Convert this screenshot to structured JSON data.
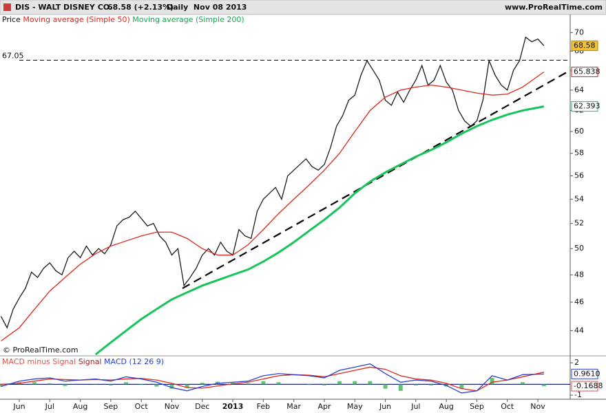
{
  "header": {
    "title": "DIS - WALT DISNEY CO.",
    "quote": "68.58 (+2.13%)",
    "period": "Daily  Nov 08 2013",
    "source": "www.ProRealTime.com"
  },
  "watermark": "© ProRealTime.com",
  "chart_data": [
    {
      "type": "line",
      "log_scale": true,
      "grid": false,
      "xlim": [
        0.368,
        19.06
      ],
      "ylim": [
        42.4,
        70.7
      ],
      "yticks": [
        44,
        46,
        48,
        50,
        52,
        54,
        56,
        58,
        60,
        62,
        64,
        66,
        68,
        70
      ],
      "hline": 67.05,
      "trendline": {
        "x": [
          6.35,
          19.06
        ],
        "values": [
          47.0,
          66.0
        ]
      },
      "series": [
        {
          "name": "Price",
          "color": "#1a1a1a",
          "label_last": true,
          "x": [
            0.4,
            0.6,
            0.8,
            1.0,
            1.2,
            1.4,
            1.6,
            1.8,
            2.0,
            2.2,
            2.4,
            2.6,
            2.8,
            3.0,
            3.2,
            3.4,
            3.6,
            3.8,
            4.0,
            4.2,
            4.4,
            4.6,
            4.8,
            5.0,
            5.2,
            5.4,
            5.6,
            5.8,
            6.0,
            6.2,
            6.4,
            6.6,
            6.8,
            7.0,
            7.2,
            7.4,
            7.6,
            7.8,
            8.0,
            8.2,
            8.4,
            8.6,
            8.8,
            9.0,
            9.2,
            9.4,
            9.6,
            9.8,
            10.0,
            10.2,
            10.4,
            10.6,
            10.8,
            11.0,
            11.2,
            11.4,
            11.6,
            11.8,
            12.0,
            12.2,
            12.4,
            12.6,
            12.8,
            13.0,
            13.2,
            13.4,
            13.6,
            13.8,
            14.0,
            14.2,
            14.4,
            14.6,
            14.8,
            15.0,
            15.2,
            15.4,
            15.6,
            15.8,
            16.0,
            16.2,
            16.4,
            16.6,
            16.8,
            17.0,
            17.2,
            17.4,
            17.6,
            17.8,
            18.0,
            18.2
          ],
          "values": [
            45.0,
            44.2,
            45.5,
            46.3,
            47.0,
            48.2,
            47.8,
            48.5,
            48.9,
            48.3,
            48.0,
            49.3,
            49.8,
            49.3,
            50.2,
            49.5,
            50.0,
            49.6,
            50.3,
            51.8,
            52.3,
            52.5,
            53.0,
            52.4,
            51.8,
            52.0,
            51.0,
            50.5,
            49.5,
            50.0,
            47.2,
            47.8,
            48.5,
            49.5,
            50.0,
            49.5,
            50.5,
            49.8,
            49.5,
            51.5,
            51.0,
            50.8,
            53.0,
            54.0,
            54.5,
            55.0,
            54.0,
            56.0,
            56.5,
            57.0,
            57.5,
            56.8,
            56.5,
            57.0,
            58.5,
            60.5,
            61.5,
            63.0,
            63.5,
            65.5,
            67.0,
            66.0,
            65.0,
            63.0,
            62.5,
            63.8,
            62.8,
            64.0,
            65.0,
            66.5,
            64.5,
            65.0,
            66.5,
            64.8,
            64.0,
            62.0,
            61.0,
            60.5,
            61.0,
            63.0,
            67.0,
            65.5,
            64.5,
            64.0,
            66.0,
            67.0,
            69.5,
            69.0,
            69.3,
            68.58
          ]
        },
        {
          "name": "Moving average (Simple 50)",
          "color": "#e0261b",
          "label_last": true,
          "x": [
            0.4,
            1,
            1.5,
            2,
            2.5,
            3,
            3.5,
            4,
            4.5,
            5,
            5.5,
            6,
            6.5,
            7,
            7.5,
            8,
            8.5,
            9,
            9.5,
            10,
            10.5,
            11,
            11.5,
            12,
            12.5,
            13,
            13.5,
            14,
            14.5,
            15,
            15.5,
            16,
            16.5,
            17,
            17.5,
            18.2
          ],
          "values": [
            43.3,
            44.2,
            45.5,
            46.8,
            47.8,
            48.8,
            49.6,
            50.2,
            50.6,
            51.0,
            51.3,
            51.3,
            50.8,
            50.0,
            49.5,
            49.5,
            50.3,
            51.5,
            52.8,
            54.0,
            55.2,
            56.5,
            58.0,
            60.0,
            62.0,
            63.3,
            64.0,
            64.3,
            64.5,
            64.3,
            64.0,
            63.7,
            63.5,
            63.6,
            64.3,
            65.838
          ]
        },
        {
          "name": "Moving average (Simple 200)",
          "color": "#16c45a",
          "label_last": true,
          "x": [
            3.5,
            4,
            4.5,
            5,
            5.5,
            6,
            6.5,
            7,
            7.5,
            8,
            8.5,
            9,
            9.5,
            10,
            10.5,
            11,
            11.5,
            12,
            12.5,
            13,
            13.5,
            14,
            14.5,
            15,
            15.5,
            16,
            16.5,
            17,
            17.5,
            18.2
          ],
          "values": [
            42.4,
            43.2,
            44.0,
            44.8,
            45.5,
            46.2,
            46.7,
            47.2,
            47.6,
            48.0,
            48.4,
            49.0,
            49.7,
            50.5,
            51.4,
            52.3,
            53.3,
            54.5,
            55.5,
            56.3,
            57.0,
            57.7,
            58.3,
            59.0,
            59.8,
            60.5,
            61.1,
            61.6,
            62.0,
            62.393
          ]
        }
      ]
    },
    {
      "type": "line",
      "log_scale": false,
      "grid": false,
      "xlim": [
        0.368,
        19.06
      ],
      "ylim": [
        -1.25,
        2.45
      ],
      "yticks": [
        -1,
        2
      ],
      "xticks": [
        {
          "value": 1,
          "label": "Jun"
        },
        {
          "value": 2,
          "label": "Jul"
        },
        {
          "value": 3,
          "label": "Aug"
        },
        {
          "value": 4,
          "label": "Sep"
        },
        {
          "value": 5,
          "label": "Oct"
        },
        {
          "value": 6,
          "label": "Nov"
        },
        {
          "value": 7,
          "label": "Dec"
        },
        {
          "value": 8,
          "label": "2013"
        },
        {
          "value": 9,
          "label": "Feb"
        },
        {
          "value": 10,
          "label": "Mar"
        },
        {
          "value": 11,
          "label": "Apr"
        },
        {
          "value": 12,
          "label": "May"
        },
        {
          "value": 13,
          "label": "Jun"
        },
        {
          "value": 14,
          "label": "Jul"
        },
        {
          "value": 15,
          "label": "Aug"
        },
        {
          "value": 16,
          "label": "Sep"
        },
        {
          "value": 17,
          "label": "Oct"
        },
        {
          "value": 18,
          "label": "Nov"
        }
      ],
      "series": [
        {
          "name": "MACD minus Signal",
          "color": "#d9534f",
          "bar_color": "#3cb44b",
          "type": "bar",
          "label_last": true,
          "x": [
            0.4,
            1,
            1.5,
            2,
            2.5,
            3,
            3.5,
            4,
            4.5,
            5,
            5.5,
            6,
            6.5,
            7,
            7.5,
            8,
            8.5,
            9,
            9.5,
            10,
            10.5,
            11,
            11.5,
            12,
            12.5,
            13,
            13.5,
            14,
            14.5,
            15,
            15.5,
            16,
            16.5,
            17,
            17.5,
            18.2
          ],
          "values": [
            -0.2,
            0.2,
            0.2,
            0.1,
            -0.15,
            0,
            0.05,
            -0.1,
            0.2,
            -0.05,
            -0.2,
            -0.4,
            -0.3,
            0.15,
            0.25,
            0.15,
            0.1,
            0.3,
            0.2,
            0,
            -0.05,
            -0.1,
            0.3,
            0.3,
            0.3,
            -0.4,
            -0.6,
            -0.1,
            -0.1,
            -0.2,
            -0.4,
            0,
            0.6,
            0,
            0.2,
            -0.1688
          ]
        },
        {
          "name": "Signal",
          "color": "#e0261b",
          "type": "line",
          "label_last": false,
          "x": [
            0.4,
            1,
            1.5,
            2,
            2.5,
            3,
            3.5,
            4,
            4.5,
            5,
            5.5,
            6,
            6.5,
            7,
            7.5,
            8,
            8.5,
            9,
            9.5,
            10,
            10.5,
            11,
            11.5,
            12,
            12.5,
            13,
            13.5,
            14,
            14.5,
            15,
            15.5,
            16,
            16.5,
            17,
            17.5,
            18.2
          ],
          "values": [
            0.0,
            0.1,
            0.3,
            0.5,
            0.45,
            0.4,
            0.45,
            0.4,
            0.5,
            0.55,
            0.4,
            0.1,
            -0.3,
            -0.35,
            -0.15,
            0.05,
            0.2,
            0.5,
            0.8,
            0.9,
            0.85,
            0.7,
            1.0,
            1.3,
            1.6,
            1.4,
            0.8,
            0.5,
            0.4,
            0.1,
            -0.4,
            -0.6,
            0.2,
            0.4,
            0.7,
            1.13
          ]
        },
        {
          "name": "MACD (12 26 9)",
          "color": "#2a3fd0",
          "type": "line",
          "label_last": true,
          "x": [
            0.4,
            1,
            1.5,
            2,
            2.5,
            3,
            3.5,
            4,
            4.5,
            5,
            5.5,
            6,
            6.5,
            7,
            7.5,
            8,
            8.5,
            9,
            9.5,
            10,
            10.5,
            11,
            11.5,
            12,
            12.5,
            13,
            13.5,
            14,
            14.5,
            15,
            15.5,
            16,
            16.5,
            17,
            17.5,
            18.2
          ],
          "values": [
            -0.2,
            0.3,
            0.5,
            0.6,
            0.3,
            0.4,
            0.5,
            0.3,
            0.7,
            0.5,
            0.2,
            -0.3,
            -0.6,
            -0.2,
            0.1,
            0.2,
            0.3,
            0.8,
            1.0,
            0.9,
            0.8,
            0.6,
            1.3,
            1.6,
            1.9,
            1.0,
            0.2,
            0.4,
            0.3,
            -0.1,
            -0.8,
            -0.6,
            0.8,
            0.4,
            0.9,
            0.961
          ],
          "value_labels": [
            null,
            null,
            null,
            null,
            null,
            null,
            null,
            null,
            null,
            null,
            null,
            null,
            null,
            null,
            null,
            null,
            null,
            null,
            null,
            null,
            null,
            null,
            null,
            null,
            null,
            null,
            null,
            null,
            null,
            null,
            null,
            null,
            null,
            null,
            null,
            "0.9610"
          ]
        }
      ]
    }
  ]
}
